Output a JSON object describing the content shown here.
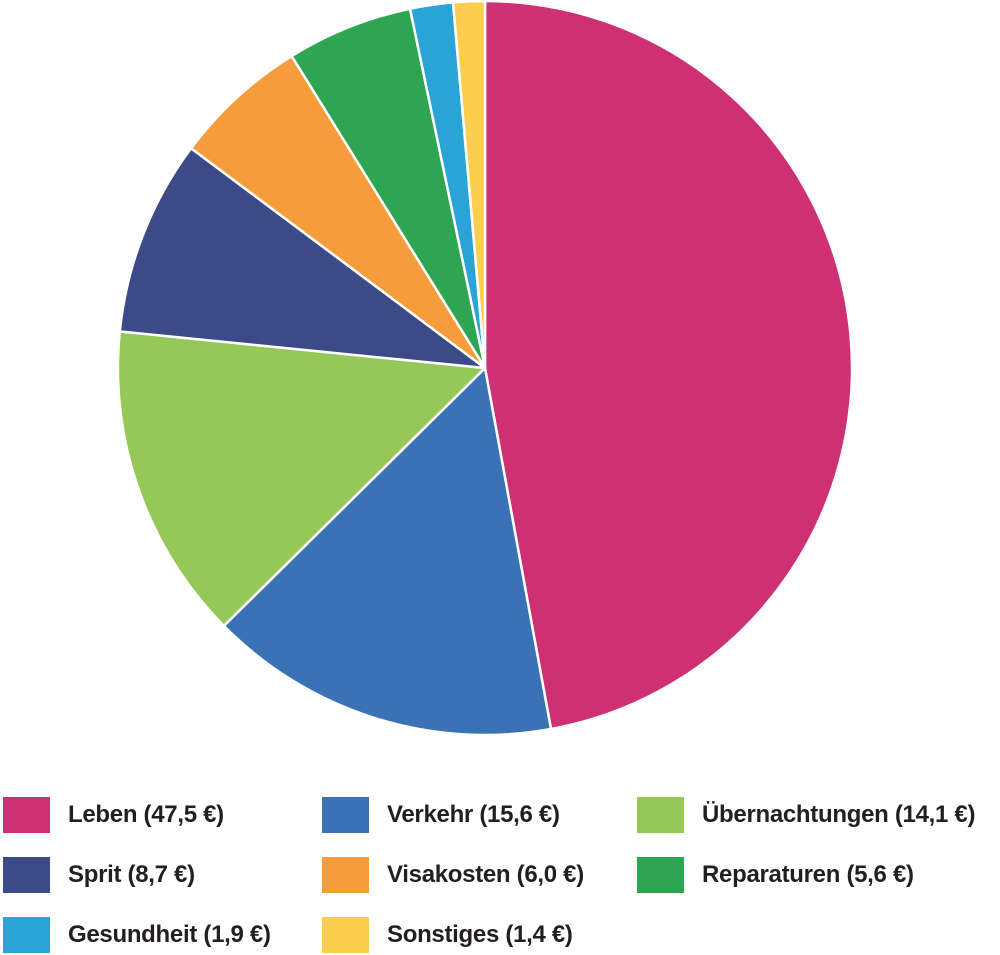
{
  "chart_data": {
    "type": "pie",
    "title": "",
    "start_angle_deg": 0,
    "direction": "clockwise",
    "slices": [
      {
        "label": "Leben (47,5 €)",
        "name": "Leben",
        "value": 47.5,
        "color": "#cd3174"
      },
      {
        "label": "Verkehr (15,6 €)",
        "name": "Verkehr",
        "value": 15.6,
        "color": "#3a72b5"
      },
      {
        "label": "Übernachtungen (14,1 €)",
        "name": "Übernachtungen",
        "value": 14.1,
        "color": "#96c857"
      },
      {
        "label": "Sprit (8,7 €)",
        "name": "Sprit",
        "value": 8.7,
        "color": "#3c4a87"
      },
      {
        "label": "Visakosten (6,0 €)",
        "name": "Visakosten",
        "value": 6.0,
        "color": "#f59c3c"
      },
      {
        "label": "Reparaturen (5,6 €)",
        "name": "Reparaturen",
        "value": 5.6,
        "color": "#2ea553"
      },
      {
        "label": "Gesundheit (1,9 €)",
        "name": "Gesundheit",
        "value": 1.9,
        "color": "#2aa3d5"
      },
      {
        "label": "Sonstiges (1,4 €)",
        "name": "Sonstiges",
        "value": 1.4,
        "color": "#fdcd4f"
      }
    ],
    "legend_position": "bottom"
  }
}
